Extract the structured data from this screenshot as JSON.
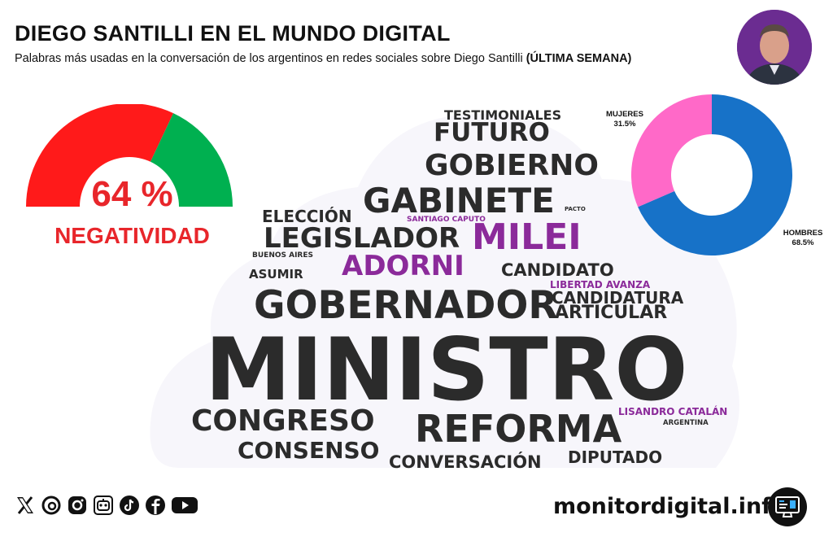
{
  "header": {
    "title": "DIEGO SANTILLI EN EL MUNDO DIGITAL",
    "subtitle": "Palabras más usadas en la conversación de los argentinos en redes sociales sobre Diego Santilli ",
    "subtitle_bold": "(ÚLTIMA SEMANA)"
  },
  "avatar_icon": "person-portrait",
  "chart_data": [
    {
      "type": "gauge",
      "value": 64,
      "value_label": "64 %",
      "label": "NEGATIVIDAD",
      "colors": {
        "negative": "#ff1a1a",
        "positive": "#00b050"
      }
    },
    {
      "type": "wordcloud",
      "words": [
        {
          "text": "MINISTRO",
          "weight": 100,
          "highlight": false
        },
        {
          "text": "GOBERNADOR",
          "weight": 42,
          "highlight": false
        },
        {
          "text": "REFORMA",
          "weight": 38,
          "highlight": false
        },
        {
          "text": "GABINETE",
          "weight": 36,
          "highlight": false
        },
        {
          "text": "MILEI",
          "weight": 36,
          "highlight": true
        },
        {
          "text": "CONGRESO",
          "weight": 32,
          "highlight": false
        },
        {
          "text": "GOBIERNO",
          "weight": 30,
          "highlight": false
        },
        {
          "text": "LEGISLADOR",
          "weight": 30,
          "highlight": false
        },
        {
          "text": "ADORNI",
          "weight": 30,
          "highlight": true
        },
        {
          "text": "FUTURO",
          "weight": 26,
          "highlight": false
        },
        {
          "text": "CONSENSO",
          "weight": 26,
          "highlight": false
        },
        {
          "text": "ARTICULAR",
          "weight": 20,
          "highlight": false
        },
        {
          "text": "CANDIDATURA",
          "weight": 19,
          "highlight": false
        },
        {
          "text": "CANDIDATO",
          "weight": 19,
          "highlight": false
        },
        {
          "text": "CONVERSACIÓN",
          "weight": 19,
          "highlight": false
        },
        {
          "text": "DIPUTADO",
          "weight": 19,
          "highlight": false
        },
        {
          "text": "ELECCIÓN",
          "weight": 18,
          "highlight": false
        },
        {
          "text": "TESTIMONIALES",
          "weight": 16,
          "highlight": false
        },
        {
          "text": "ASUMIR",
          "weight": 14,
          "highlight": false
        },
        {
          "text": "LIBERTAD AVANZA",
          "weight": 11,
          "highlight": true
        },
        {
          "text": "LISANDRO CATALÁN",
          "weight": 11,
          "highlight": true
        },
        {
          "text": "SANTIAGO CAPUTO",
          "weight": 7,
          "highlight": true
        },
        {
          "text": "BUENOS AIRES",
          "weight": 7,
          "highlight": false
        },
        {
          "text": "ARGENTINA",
          "weight": 7,
          "highlight": false
        },
        {
          "text": "PACTO",
          "weight": 5,
          "highlight": false
        }
      ]
    },
    {
      "type": "pie",
      "donut": true,
      "slices": [
        {
          "name": "HOMBRES",
          "value": 68.5,
          "label": "68.5%",
          "color": "#1772c8"
        },
        {
          "name": "MUJERES",
          "value": 31.5,
          "label": "31.5%",
          "color": "#ff69c8"
        }
      ]
    }
  ],
  "footer": {
    "social_icons": [
      "x-icon",
      "threads-icon",
      "instagram-icon",
      "robot-icon",
      "tiktok-icon",
      "facebook-icon",
      "youtube-icon"
    ],
    "website": "monitordigital.info",
    "monitor_icon": "computer-monitor"
  }
}
